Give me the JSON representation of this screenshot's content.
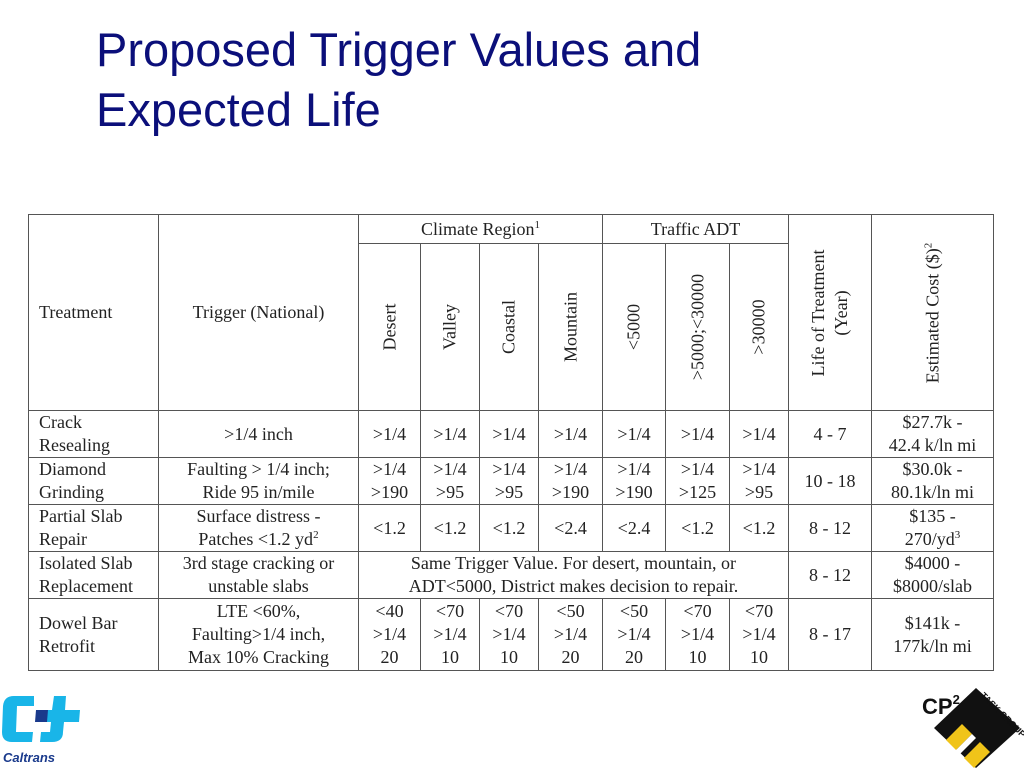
{
  "slide": {
    "title_line1": "Proposed Trigger Values and",
    "title_line2": "Expected Life"
  },
  "table": {
    "h_treatment": "Treatment",
    "h_trigger": "Trigger (National)",
    "h_climate": "Climate Region",
    "h_climate_sup": "1",
    "h_traffic": "Traffic ADT",
    "h_life_1": "Life of Treatment",
    "h_life_2": "(Year)",
    "h_cost": "Estimated Cost ($)",
    "h_cost_sup": "2",
    "h_desert": "Desert",
    "h_valley": "Valley",
    "h_coastal": "Coastal",
    "h_mountain": "Mountain",
    "h_adt1": "<5000",
    "h_adt2": ">5000;<30000",
    "h_adt3": ">30000",
    "rows": [
      {
        "treatment": [
          "Crack",
          "Resealing"
        ],
        "trigger": [
          ">1/4 inch"
        ],
        "cells": [
          [
            ">1/4"
          ],
          [
            ">1/4"
          ],
          [
            ">1/4"
          ],
          [
            ">1/4"
          ],
          [
            ">1/4"
          ],
          [
            ">1/4"
          ],
          [
            ">1/4"
          ]
        ],
        "life": "4 - 7",
        "cost": [
          "$27.7k -",
          "42.4 k/ln mi"
        ]
      },
      {
        "treatment": [
          "Diamond",
          "Grinding"
        ],
        "trigger": [
          "Faulting > 1/4 inch;",
          "Ride 95 in/mile"
        ],
        "cells": [
          [
            ">1/4",
            ">190"
          ],
          [
            ">1/4",
            ">95"
          ],
          [
            ">1/4",
            ">95"
          ],
          [
            ">1/4",
            ">190"
          ],
          [
            ">1/4",
            ">190"
          ],
          [
            ">1/4",
            ">125"
          ],
          [
            ">1/4",
            ">95"
          ]
        ],
        "life": "10 - 18",
        "cost": [
          "$30.0k -",
          "80.1k/ln mi"
        ]
      },
      {
        "treatment": [
          "Partial Slab",
          "Repair"
        ],
        "trigger": [
          "Surface distress -",
          "Patches <1.2 yd"
        ],
        "trigger_sup": "2",
        "cells": [
          [
            "<1.2"
          ],
          [
            "<1.2"
          ],
          [
            "<1.2"
          ],
          [
            "<2.4"
          ],
          [
            "<2.4"
          ],
          [
            "<1.2"
          ],
          [
            "<1.2"
          ]
        ],
        "life": "8 - 12",
        "cost": [
          "$135 -",
          "270/yd"
        ],
        "cost_sup": "3"
      },
      {
        "treatment": [
          "Isolated Slab",
          "Replacement"
        ],
        "trigger": [
          "3rd stage cracking or",
          "unstable slabs"
        ],
        "merged": [
          "Same Trigger Value.  For desert, mountain, or",
          "ADT<5000, District makes decision to repair."
        ],
        "life": "8 - 12",
        "cost": [
          "$4000 -",
          "$8000/slab"
        ]
      },
      {
        "treatment": [
          "Dowel Bar",
          "Retrofit"
        ],
        "trigger": [
          "LTE <60%,",
          "Faulting>1/4 inch,",
          "Max 10% Cracking"
        ],
        "cells": [
          [
            "<40",
            ">1/4",
            "20"
          ],
          [
            "<70",
            ">1/4",
            "10"
          ],
          [
            "<70",
            ">1/4",
            "10"
          ],
          [
            "<50",
            ">1/4",
            "20"
          ],
          [
            "<50",
            ">1/4",
            "20"
          ],
          [
            "<70",
            ">1/4",
            "10"
          ],
          [
            "<70",
            ">1/4",
            "10"
          ]
        ],
        "life": "8 - 17",
        "cost": [
          "$141k -",
          "177k/ln mi"
        ]
      }
    ]
  },
  "logos": {
    "caltrans": "Caltrans",
    "cp2": "CP",
    "cp2_sup": "2",
    "task_group": "TASK GROUP"
  },
  "colors": {
    "title": "#0b0f7a",
    "caltrans_cyan": "#19b5e8",
    "caltrans_blue": "#1a3a8c"
  }
}
